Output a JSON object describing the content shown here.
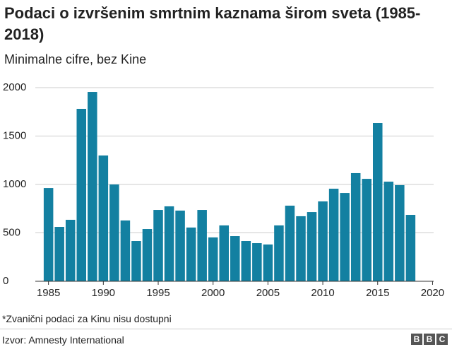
{
  "chart_data": {
    "type": "bar",
    "title": "Podaci o izvršenim smrtnim kaznama širom sveta (1985-2018)",
    "subtitle": "Minimalne cifre, bez Kine",
    "x": [
      1985,
      1986,
      1987,
      1988,
      1989,
      1990,
      1991,
      1992,
      1993,
      1994,
      1995,
      1996,
      1997,
      1998,
      1999,
      2000,
      2001,
      2002,
      2003,
      2004,
      2005,
      2006,
      2007,
      2008,
      2009,
      2010,
      2011,
      2012,
      2013,
      2014,
      2015,
      2016,
      2017,
      2018
    ],
    "values": [
      963,
      562,
      635,
      1781,
      1956,
      1299,
      1000,
      628,
      416,
      540,
      737,
      774,
      730,
      555,
      737,
      453,
      577,
      467,
      416,
      394,
      380,
      577,
      781,
      672,
      715,
      825,
      956,
      912,
      1117,
      1058,
      1635,
      1029,
      993,
      686
    ],
    "color": "#1380a1",
    "xlim": [
      1983.8,
      2020.1
    ],
    "xticks": [
      1985,
      1990,
      1995,
      2000,
      2005,
      2010,
      2015,
      2020
    ],
    "ylim": [
      0,
      2000
    ],
    "yticks": [
      0,
      500,
      1000,
      1500,
      2000
    ],
    "grid": true,
    "footnote": "*Zvanični podaci za Kinu nisu dostupni",
    "source": "Izvor: Amnesty International",
    "logo": [
      "B",
      "B",
      "C"
    ]
  }
}
